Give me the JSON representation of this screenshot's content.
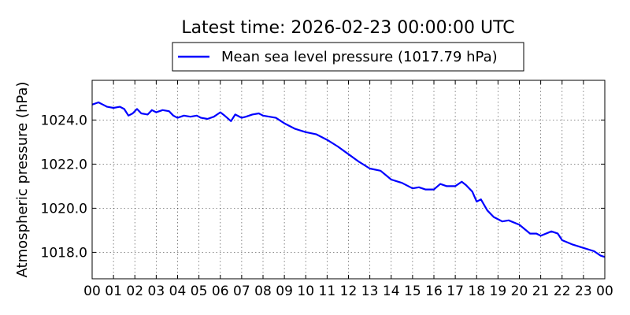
{
  "chart_data": {
    "type": "line",
    "title": "Latest time: 2026-02-23 00:00:00 UTC",
    "xlabel": "",
    "ylabel": "Atmospheric pressure (hPa)",
    "xlim": [
      0,
      24
    ],
    "ylim": [
      1016.8,
      1025.8
    ],
    "x_ticks": [
      0,
      1,
      2,
      3,
      4,
      5,
      6,
      7,
      8,
      9,
      10,
      11,
      12,
      13,
      14,
      15,
      16,
      17,
      18,
      19,
      20,
      21,
      22,
      23,
      24
    ],
    "x_tick_labels": [
      "00",
      "01",
      "02",
      "03",
      "04",
      "05",
      "06",
      "07",
      "08",
      "09",
      "10",
      "11",
      "12",
      "13",
      "14",
      "15",
      "16",
      "17",
      "18",
      "19",
      "20",
      "21",
      "22",
      "23",
      "00"
    ],
    "y_ticks": [
      1018.0,
      1020.0,
      1022.0,
      1024.0
    ],
    "y_tick_labels": [
      "1018.0",
      "1020.0",
      "1022.0",
      "1024.0"
    ],
    "grid": true,
    "legend_position": "top-center",
    "colors": {
      "series": "#0000ff"
    },
    "series": [
      {
        "name": "Mean sea level pressure (1017.79 hPa)",
        "x": [
          0,
          0.3,
          0.5,
          0.7,
          1,
          1.3,
          1.5,
          1.7,
          1.9,
          2.1,
          2.3,
          2.6,
          2.8,
          3,
          3.3,
          3.6,
          3.8,
          4,
          4.3,
          4.6,
          4.9,
          5.1,
          5.4,
          5.7,
          6,
          6.2,
          6.5,
          6.7,
          7,
          7.2,
          7.5,
          7.8,
          8,
          8.3,
          8.6,
          9,
          9.5,
          10,
          10.5,
          11,
          11.5,
          12,
          12.5,
          13,
          13.5,
          14,
          14.5,
          15,
          15.3,
          15.6,
          16,
          16.3,
          16.6,
          17,
          17.3,
          17.5,
          17.8,
          18,
          18.2,
          18.5,
          18.8,
          19,
          19.2,
          19.5,
          20,
          20.5,
          20.8,
          21,
          21.5,
          21.8,
          22,
          22.5,
          23,
          23.5,
          23.8,
          24
        ],
        "y": [
          1024.7,
          1024.8,
          1024.7,
          1024.6,
          1024.55,
          1024.6,
          1024.5,
          1024.2,
          1024.3,
          1024.5,
          1024.3,
          1024.25,
          1024.45,
          1024.35,
          1024.45,
          1024.4,
          1024.2,
          1024.1,
          1024.2,
          1024.15,
          1024.2,
          1024.1,
          1024.05,
          1024.15,
          1024.35,
          1024.2,
          1023.95,
          1024.25,
          1024.1,
          1024.15,
          1024.25,
          1024.3,
          1024.2,
          1024.15,
          1024.1,
          1023.85,
          1023.6,
          1023.45,
          1023.35,
          1023.1,
          1022.8,
          1022.45,
          1022.1,
          1021.8,
          1021.7,
          1021.3,
          1021.15,
          1020.9,
          1020.95,
          1020.85,
          1020.85,
          1021.1,
          1021.0,
          1021.0,
          1021.2,
          1021.05,
          1020.75,
          1020.3,
          1020.4,
          1019.9,
          1019.6,
          1019.5,
          1019.4,
          1019.45,
          1019.25,
          1018.85,
          1018.85,
          1018.75,
          1018.95,
          1018.85,
          1018.55,
          1018.35,
          1018.2,
          1018.05,
          1017.85,
          1017.79
        ]
      }
    ]
  }
}
